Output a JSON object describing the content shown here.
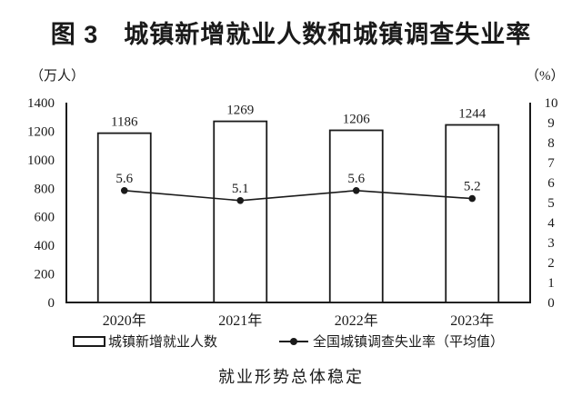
{
  "figure": {
    "title": "图 3　城镇新增就业人数和城镇调查失业率",
    "unit_left": "（万人）",
    "unit_right": "（%）",
    "caption": "就业形势总体稳定"
  },
  "legend": {
    "bar_label": "城镇新增就业人数",
    "line_label": "全国城镇调查失业率（平均值）"
  },
  "chart_data": {
    "type": "bar+line",
    "title": "图 3　城镇新增就业人数和城镇调查失业率",
    "categories": [
      "2020年",
      "2021年",
      "2022年",
      "2023年"
    ],
    "series": [
      {
        "name": "城镇新增就业人数",
        "type": "bar",
        "axis": "left",
        "values": [
          1186,
          1269,
          1206,
          1244
        ]
      },
      {
        "name": "全国城镇调查失业率（平均值）",
        "type": "line",
        "axis": "right",
        "values": [
          5.6,
          5.1,
          5.6,
          5.2
        ]
      }
    ],
    "ylabel_left": "万人",
    "ylabel_right": "%",
    "ylim_left": [
      0,
      1400
    ],
    "ylim_right": [
      0,
      10
    ],
    "yticks_left": [
      0,
      200,
      400,
      600,
      800,
      1000,
      1200,
      1400
    ],
    "yticks_right": [
      0,
      1,
      2,
      3,
      4,
      5,
      6,
      7,
      8,
      9,
      10
    ],
    "grid": false,
    "legend_position": "bottom",
    "colors": {
      "ink": "#1a1a1a",
      "bar_fill": "#ffffff",
      "background": "#ffffff"
    }
  }
}
